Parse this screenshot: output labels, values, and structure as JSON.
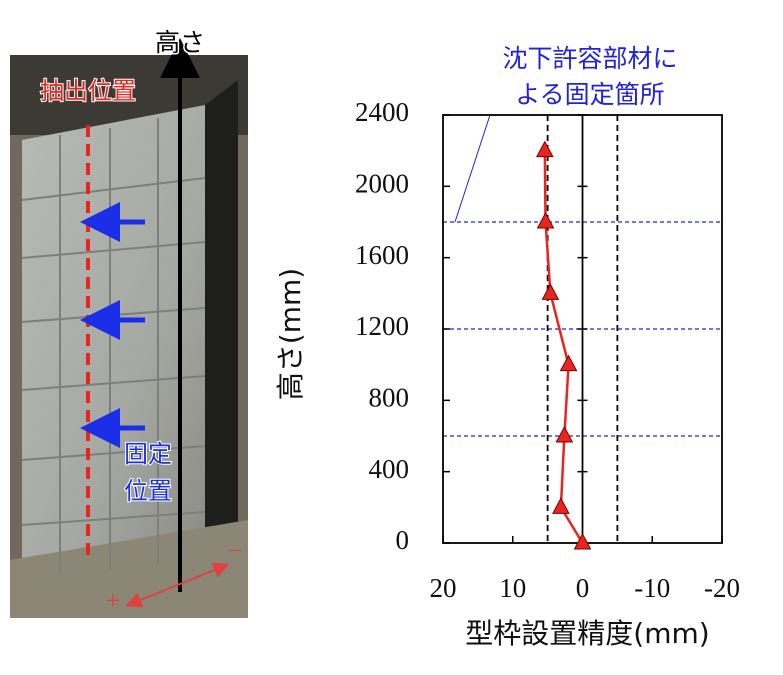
{
  "chart_data": {
    "type": "line",
    "xlabel": "型枠設置精度(mm)",
    "ylabel": "高さ(mm)",
    "annotation": [
      "沈下許容部材に",
      "よる固定箇所"
    ],
    "xlim": [
      20,
      -20
    ],
    "xticks": [
      20,
      10,
      0,
      -10,
      -20
    ],
    "ylim": [
      0,
      2400
    ],
    "yticks": [
      0,
      400,
      800,
      1200,
      1600,
      2000,
      2400
    ],
    "series": [
      {
        "color": "#e8251f",
        "x": [
          5.4,
          5.3,
          4.6,
          2,
          2.6,
          3.1,
          0
        ],
        "values": [
          2200,
          1800,
          1400,
          1000,
          600,
          200,
          0
        ]
      }
    ],
    "vlines": [
      5,
      0,
      -5
    ],
    "hlines": [
      1800,
      1200,
      600
    ],
    "hline_color": "#2222dd"
  },
  "photo": {
    "height_label": "高さ",
    "extract_label": "抽出位置",
    "fixed_label": [
      "固定",
      "位置"
    ],
    "plus": "+",
    "minus": "−"
  }
}
